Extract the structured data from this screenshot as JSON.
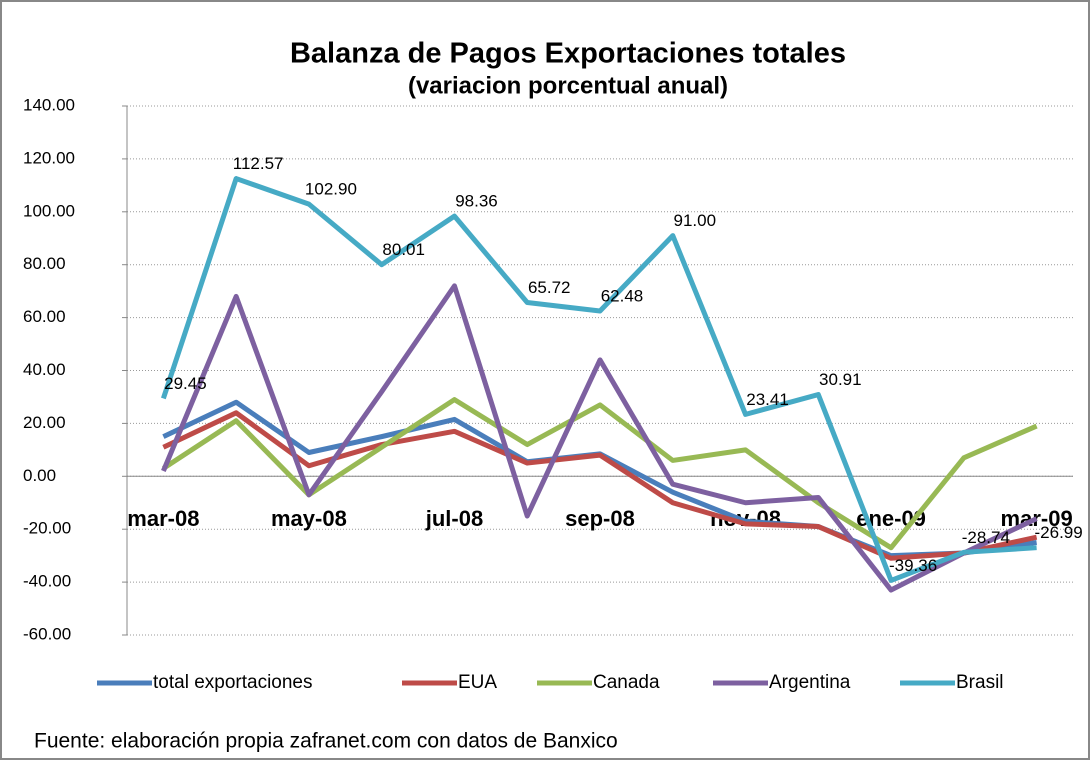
{
  "chart_data": {
    "type": "line",
    "title": "Balanza de Pagos Exportaciones totales",
    "subtitle": "(variacion porcentual anual)",
    "source": "Fuente: elaboración propia zafranet.com con datos de Banxico",
    "categories": [
      "mar-08",
      null,
      "may-08",
      null,
      "jul-08",
      null,
      "sep-08",
      null,
      "nov-08",
      null,
      "ene-09",
      null,
      "mar-09"
    ],
    "ylim": [
      -60,
      140
    ],
    "yticks": [
      {
        "value": -60,
        "label": "-60.00"
      },
      {
        "value": -40,
        "label": "-40.00"
      },
      {
        "value": -20,
        "label": "-20.00"
      },
      {
        "value": 0,
        "label": "0.00"
      },
      {
        "value": 20,
        "label": "20.00"
      },
      {
        "value": 40,
        "label": "40.00"
      },
      {
        "value": 60,
        "label": "60.00"
      },
      {
        "value": 80,
        "label": "80.00"
      },
      {
        "value": 100,
        "label": "100.00"
      },
      {
        "value": 120,
        "label": "120.00"
      },
      {
        "value": 140,
        "label": "140.00"
      }
    ],
    "grid": true,
    "legend": "bottom",
    "series": [
      {
        "name": "total exportaciones",
        "color": "#4a7ebb",
        "values": [
          15,
          28,
          9,
          15,
          21.5,
          5.5,
          8.5,
          -6,
          -17,
          -19,
          -30,
          -29,
          -25
        ]
      },
      {
        "name": "EUA",
        "color": "#be4b48",
        "values": [
          11,
          24,
          4,
          12,
          17,
          5,
          8,
          -10,
          -18,
          -19,
          -31,
          -29,
          -23
        ]
      },
      {
        "name": "Canada",
        "color": "#98b954",
        "values": [
          3,
          21,
          -7,
          11,
          29,
          12,
          27,
          6,
          10,
          -10,
          -27,
          7,
          19
        ]
      },
      {
        "name": "Argentina",
        "color": "#7d60a0",
        "values": [
          2,
          68,
          -7,
          32,
          72,
          -15,
          44,
          -3,
          -10,
          -8,
          -43,
          -29,
          -16
        ]
      },
      {
        "name": "Brasil",
        "color": "#46aac5",
        "values": [
          29.45,
          112.57,
          102.9,
          80.01,
          98.36,
          65.72,
          62.48,
          91.0,
          23.41,
          30.91,
          -39.36,
          -28.74,
          -26.99
        ],
        "value_labels": [
          "29.45",
          "112.57",
          "102.90",
          "80.01",
          "98.36",
          "65.72",
          "62.48",
          "91.00",
          "23.41",
          "30.91",
          "-39.36",
          "-28.74",
          "-26.99"
        ]
      }
    ]
  }
}
